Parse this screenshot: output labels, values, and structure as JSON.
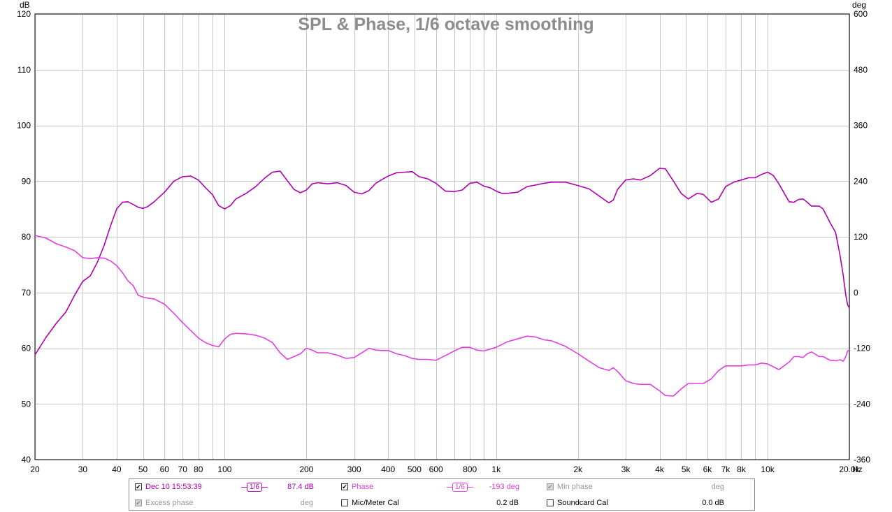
{
  "chart_data": {
    "type": "line",
    "title": "SPL & Phase, 1/6 octave smoothing",
    "xscale": "log",
    "xlim": [
      20,
      20000
    ],
    "x_unit": "Hz",
    "x_ticks": [
      {
        "v": 20,
        "label": "20"
      },
      {
        "v": 30,
        "label": "30"
      },
      {
        "v": 40,
        "label": "40"
      },
      {
        "v": 50,
        "label": "50"
      },
      {
        "v": 60,
        "label": "60"
      },
      {
        "v": 70,
        "label": "70"
      },
      {
        "v": 80,
        "label": "80"
      },
      {
        "v": 100,
        "label": "100"
      },
      {
        "v": 200,
        "label": "200"
      },
      {
        "v": 300,
        "label": "300"
      },
      {
        "v": 400,
        "label": "400"
      },
      {
        "v": 500,
        "label": "500"
      },
      {
        "v": 600,
        "label": "600"
      },
      {
        "v": 800,
        "label": "800"
      },
      {
        "v": 1000,
        "label": "1k"
      },
      {
        "v": 2000,
        "label": "2k"
      },
      {
        "v": 3000,
        "label": "3k"
      },
      {
        "v": 4000,
        "label": "4k"
      },
      {
        "v": 5000,
        "label": "5k"
      },
      {
        "v": 6000,
        "label": "6k"
      },
      {
        "v": 7000,
        "label": "7k"
      },
      {
        "v": 8000,
        "label": "8k"
      },
      {
        "v": 10000,
        "label": "10k"
      },
      {
        "v": 20000,
        "label": "20.0k"
      }
    ],
    "x_grid": [
      20,
      30,
      40,
      50,
      60,
      70,
      80,
      90,
      100,
      200,
      300,
      400,
      500,
      600,
      700,
      800,
      900,
      1000,
      2000,
      3000,
      4000,
      5000,
      6000,
      7000,
      8000,
      9000,
      10000,
      20000
    ],
    "ylim": [
      40,
      120
    ],
    "y_unit": "dB",
    "y_ticks": [
      40,
      50,
      60,
      70,
      80,
      90,
      100,
      110,
      120
    ],
    "y2lim": [
      -360,
      600
    ],
    "y2_unit": "deg",
    "y2_ticks": [
      -360,
      -240,
      -120,
      0,
      120,
      240,
      360,
      480,
      600
    ],
    "grid": true,
    "series": [
      {
        "name": "Dec 10 15:53:39",
        "axis": "left",
        "color": "#b000b0",
        "points": [
          [
            20,
            58.8
          ],
          [
            22,
            62
          ],
          [
            24,
            64.5
          ],
          [
            26,
            66.5
          ],
          [
            28,
            69.5
          ],
          [
            30,
            72
          ],
          [
            32,
            73
          ],
          [
            34,
            75.5
          ],
          [
            36,
            78.5
          ],
          [
            38,
            82
          ],
          [
            40,
            85
          ],
          [
            42,
            86.2
          ],
          [
            44,
            86.3
          ],
          [
            46,
            85.8
          ],
          [
            48,
            85.3
          ],
          [
            50,
            85.1
          ],
          [
            52,
            85.4
          ],
          [
            55,
            86.3
          ],
          [
            60,
            88
          ],
          [
            65,
            90
          ],
          [
            70,
            90.8
          ],
          [
            75,
            90.9
          ],
          [
            80,
            90.2
          ],
          [
            85,
            88.8
          ],
          [
            90,
            87.6
          ],
          [
            95,
            85.6
          ],
          [
            100,
            85
          ],
          [
            105,
            85.6
          ],
          [
            110,
            86.8
          ],
          [
            120,
            87.8
          ],
          [
            130,
            89
          ],
          [
            140,
            90.5
          ],
          [
            150,
            91.6
          ],
          [
            160,
            91.8
          ],
          [
            170,
            90.1
          ],
          [
            180,
            88.5
          ],
          [
            190,
            87.9
          ],
          [
            200,
            88.4
          ],
          [
            210,
            89.5
          ],
          [
            220,
            89.7
          ],
          [
            240,
            89.5
          ],
          [
            260,
            89.7
          ],
          [
            280,
            89.2
          ],
          [
            300,
            88
          ],
          [
            320,
            87.7
          ],
          [
            340,
            88.3
          ],
          [
            360,
            89.6
          ],
          [
            380,
            90.3
          ],
          [
            400,
            90.9
          ],
          [
            430,
            91.5
          ],
          [
            460,
            91.6
          ],
          [
            490,
            91.7
          ],
          [
            520,
            90.8
          ],
          [
            560,
            90.4
          ],
          [
            600,
            89.6
          ],
          [
            650,
            88.2
          ],
          [
            700,
            88.1
          ],
          [
            750,
            88.4
          ],
          [
            800,
            89.6
          ],
          [
            850,
            89.8
          ],
          [
            900,
            89.1
          ],
          [
            950,
            88.8
          ],
          [
            1000,
            88.2
          ],
          [
            1050,
            87.8
          ],
          [
            1100,
            87.8
          ],
          [
            1200,
            88
          ],
          [
            1300,
            89
          ],
          [
            1400,
            89.3
          ],
          [
            1500,
            89.6
          ],
          [
            1600,
            89.8
          ],
          [
            1800,
            89.8
          ],
          [
            2000,
            89.2
          ],
          [
            2200,
            88.6
          ],
          [
            2400,
            87.3
          ],
          [
            2600,
            86.1
          ],
          [
            2700,
            86.6
          ],
          [
            2800,
            88.5
          ],
          [
            3000,
            90.2
          ],
          [
            3200,
            90.4
          ],
          [
            3400,
            90.2
          ],
          [
            3700,
            91
          ],
          [
            4000,
            92.3
          ],
          [
            4200,
            92.2
          ],
          [
            4500,
            90
          ],
          [
            4800,
            87.8
          ],
          [
            5100,
            86.8
          ],
          [
            5500,
            87.8
          ],
          [
            5800,
            87.6
          ],
          [
            6200,
            86.2
          ],
          [
            6600,
            86.8
          ],
          [
            7000,
            89
          ],
          [
            7500,
            89.8
          ],
          [
            8000,
            90.2
          ],
          [
            8500,
            90.6
          ],
          [
            9000,
            90.6
          ],
          [
            9500,
            91.2
          ],
          [
            10000,
            91.6
          ],
          [
            10500,
            91
          ],
          [
            11000,
            89.5
          ],
          [
            12000,
            86.3
          ],
          [
            12500,
            86.2
          ],
          [
            13000,
            86.7
          ],
          [
            13500,
            86.8
          ],
          [
            14000,
            86.2
          ],
          [
            14500,
            85.5
          ],
          [
            15500,
            85.5
          ],
          [
            16000,
            85
          ],
          [
            17000,
            82.5
          ],
          [
            17800,
            80.8
          ],
          [
            18500,
            76.5
          ],
          [
            19000,
            73
          ],
          [
            19400,
            69.5
          ],
          [
            19700,
            67.8
          ],
          [
            20000,
            67.2
          ]
        ]
      },
      {
        "name": "Phase",
        "axis": "right",
        "color": "#e040e0",
        "points": [
          [
            20,
            123
          ],
          [
            22,
            117
          ],
          [
            24,
            105
          ],
          [
            26,
            98
          ],
          [
            28,
            90
          ],
          [
            30,
            75
          ],
          [
            32,
            73
          ],
          [
            34,
            75
          ],
          [
            36,
            74
          ],
          [
            38,
            68
          ],
          [
            40,
            58
          ],
          [
            42,
            43
          ],
          [
            44,
            25
          ],
          [
            46,
            15
          ],
          [
            48,
            -6
          ],
          [
            50,
            -10
          ],
          [
            52,
            -12
          ],
          [
            55,
            -14
          ],
          [
            60,
            -25
          ],
          [
            65,
            -45
          ],
          [
            70,
            -65
          ],
          [
            75,
            -82
          ],
          [
            80,
            -98
          ],
          [
            85,
            -108
          ],
          [
            90,
            -114
          ],
          [
            95,
            -117
          ],
          [
            100,
            -100
          ],
          [
            105,
            -90
          ],
          [
            110,
            -88
          ],
          [
            120,
            -89
          ],
          [
            130,
            -92
          ],
          [
            140,
            -98
          ],
          [
            150,
            -108
          ],
          [
            160,
            -130
          ],
          [
            170,
            -144
          ],
          [
            180,
            -138
          ],
          [
            190,
            -132
          ],
          [
            200,
            -120
          ],
          [
            210,
            -124
          ],
          [
            220,
            -130
          ],
          [
            240,
            -130
          ],
          [
            260,
            -135
          ],
          [
            280,
            -142
          ],
          [
            300,
            -140
          ],
          [
            320,
            -130
          ],
          [
            340,
            -120
          ],
          [
            360,
            -124
          ],
          [
            380,
            -125
          ],
          [
            400,
            -125
          ],
          [
            430,
            -132
          ],
          [
            460,
            -136
          ],
          [
            490,
            -142
          ],
          [
            520,
            -144
          ],
          [
            560,
            -144
          ],
          [
            600,
            -146
          ],
          [
            650,
            -136
          ],
          [
            700,
            -126
          ],
          [
            750,
            -118
          ],
          [
            800,
            -118
          ],
          [
            850,
            -124
          ],
          [
            900,
            -126
          ],
          [
            950,
            -122
          ],
          [
            1000,
            -118
          ],
          [
            1050,
            -112
          ],
          [
            1100,
            -106
          ],
          [
            1200,
            -100
          ],
          [
            1300,
            -94
          ],
          [
            1400,
            -96
          ],
          [
            1500,
            -102
          ],
          [
            1600,
            -104
          ],
          [
            1800,
            -116
          ],
          [
            2000,
            -132
          ],
          [
            2200,
            -148
          ],
          [
            2400,
            -162
          ],
          [
            2600,
            -168
          ],
          [
            2700,
            -162
          ],
          [
            2800,
            -170
          ],
          [
            3000,
            -190
          ],
          [
            3200,
            -196
          ],
          [
            3400,
            -198
          ],
          [
            3700,
            -198
          ],
          [
            4000,
            -212
          ],
          [
            4200,
            -222
          ],
          [
            4500,
            -223
          ],
          [
            4800,
            -208
          ],
          [
            5100,
            -196
          ],
          [
            5500,
            -196
          ],
          [
            5800,
            -196
          ],
          [
            6200,
            -186
          ],
          [
            6600,
            -168
          ],
          [
            7000,
            -158
          ],
          [
            7500,
            -158
          ],
          [
            8000,
            -158
          ],
          [
            8500,
            -156
          ],
          [
            9000,
            -156
          ],
          [
            9500,
            -152
          ],
          [
            10000,
            -154
          ],
          [
            10500,
            -160
          ],
          [
            11000,
            -166
          ],
          [
            12000,
            -150
          ],
          [
            12500,
            -138
          ],
          [
            13000,
            -138
          ],
          [
            13500,
            -140
          ],
          [
            14000,
            -132
          ],
          [
            14500,
            -128
          ],
          [
            15500,
            -138
          ],
          [
            16000,
            -138
          ],
          [
            17000,
            -146
          ],
          [
            17800,
            -147
          ],
          [
            18500,
            -145
          ],
          [
            19000,
            -148
          ],
          [
            19400,
            -138
          ],
          [
            19700,
            -126
          ],
          [
            20000,
            -124
          ]
        ]
      }
    ]
  },
  "legend": {
    "row1": {
      "spl_name": "Dec 10 15:53:39",
      "spl_smoothing": "1/6",
      "spl_value": "87.4 dB",
      "phase_name": "Phase",
      "phase_smoothing": "1/6",
      "phase_value": "-193 deg",
      "minphase_name": "Min phase",
      "minphase_value": "deg"
    },
    "row2": {
      "excess_name": "Excess phase",
      "excess_value": "deg",
      "mic_name": "Mic/Meter Cal",
      "mic_value": "0.2 dB",
      "soundcard_name": "Soundcard Cal",
      "soundcard_value": "0.0 dB"
    }
  }
}
